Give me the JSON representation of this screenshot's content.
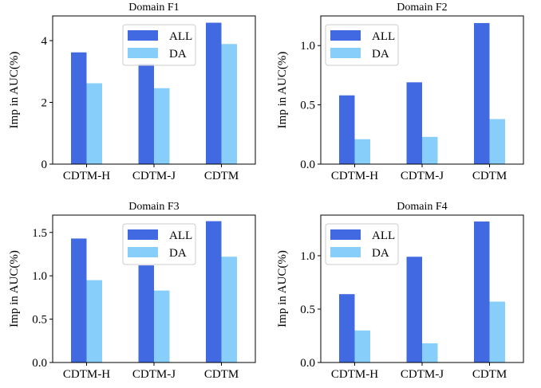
{
  "figure": {
    "colors": {
      "all": "#4169E1",
      "da": "#87CEFA"
    }
  },
  "chart_data": [
    {
      "type": "bar",
      "title": "Domain F1",
      "ylabel": "Imp in AUC(%)",
      "xlabel": "",
      "categories": [
        "CDTM-H",
        "CDTM-J",
        "CDTM"
      ],
      "ylim": [
        0,
        4.8
      ],
      "yticks": [
        "0",
        "2",
        "4"
      ],
      "ytick_values": [
        0,
        2,
        4
      ],
      "legend": "top-center",
      "series": [
        {
          "name": "ALL",
          "values": [
            3.62,
            3.25,
            4.58
          ]
        },
        {
          "name": "DA",
          "values": [
            2.62,
            2.46,
            3.89
          ]
        }
      ]
    },
    {
      "type": "bar",
      "title": "Domain F2",
      "ylabel": "Imp in AUC(%)",
      "xlabel": "",
      "categories": [
        "CDTM-H",
        "CDTM-J",
        "CDTM"
      ],
      "ylim": [
        0,
        1.25
      ],
      "yticks": [
        "0.0",
        "0.5",
        "1.0"
      ],
      "ytick_values": [
        0,
        0.5,
        1.0
      ],
      "legend": "top-left",
      "series": [
        {
          "name": "ALL",
          "values": [
            0.58,
            0.69,
            1.19
          ]
        },
        {
          "name": "DA",
          "values": [
            0.21,
            0.23,
            0.38
          ]
        }
      ]
    },
    {
      "type": "bar",
      "title": "Domain F3",
      "ylabel": "Imp in AUC(%)",
      "xlabel": "",
      "categories": [
        "CDTM-H",
        "CDTM-J",
        "CDTM"
      ],
      "ylim": [
        0,
        1.7
      ],
      "yticks": [
        "0.0",
        "0.5",
        "1.0",
        "1.5"
      ],
      "ytick_values": [
        0,
        0.5,
        1.0,
        1.5
      ],
      "legend": "top-center",
      "series": [
        {
          "name": "ALL",
          "values": [
            1.43,
            1.12,
            1.63
          ]
        },
        {
          "name": "DA",
          "values": [
            0.95,
            0.83,
            1.22
          ]
        }
      ]
    },
    {
      "type": "bar",
      "title": "Domain F4",
      "ylabel": "Imp in AUC(%)",
      "xlabel": "",
      "categories": [
        "CDTM-H",
        "CDTM-J",
        "CDTM"
      ],
      "ylim": [
        0,
        1.38
      ],
      "yticks": [
        "0.0",
        "0.5",
        "1.0"
      ],
      "ytick_values": [
        0,
        0.5,
        1.0
      ],
      "legend": "top-left",
      "series": [
        {
          "name": "ALL",
          "values": [
            0.64,
            0.99,
            1.32
          ]
        },
        {
          "name": "DA",
          "values": [
            0.3,
            0.18,
            0.57
          ]
        }
      ]
    }
  ]
}
